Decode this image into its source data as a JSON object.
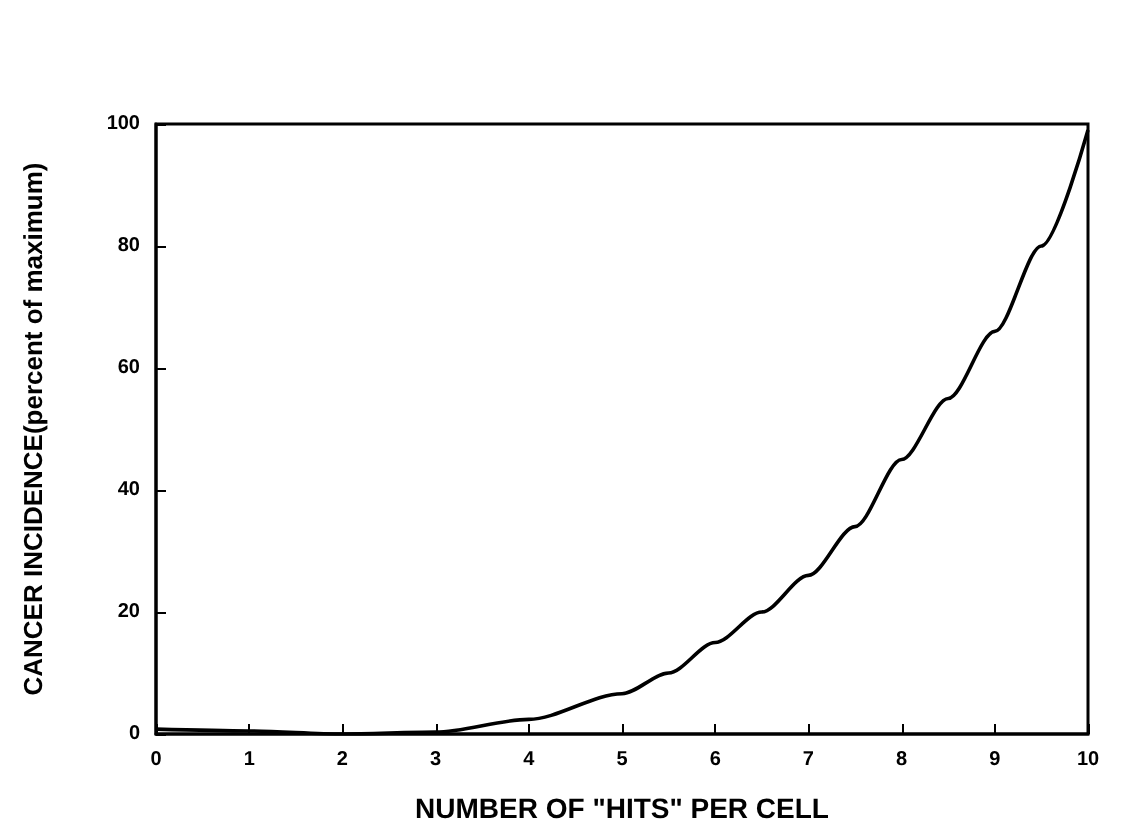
{
  "chart_data": {
    "type": "line",
    "xlabel": "NUMBER OF \"HITS\" PER CELL",
    "ylabel": "CANCER INCIDENCE(percent of maximum)",
    "x": [
      0,
      1,
      2,
      3,
      4,
      5,
      5.5,
      6,
      6.5,
      7,
      7.5,
      8,
      8.5,
      9,
      9.5,
      10
    ],
    "series": [
      {
        "color": "#000000",
        "values": [
          0.8,
          0.5,
          0,
          0.3,
          2.4,
          6.6,
          10,
          15,
          20,
          26,
          34,
          45,
          55,
          66,
          80,
          99
        ]
      }
    ],
    "xlim": [
      0,
      10
    ],
    "xticks": [
      0,
      1,
      2,
      3,
      4,
      5,
      6,
      7,
      8,
      9,
      10
    ],
    "ylim": [
      0,
      100
    ],
    "yticks": [
      0,
      20,
      40,
      60,
      80,
      100
    ],
    "grid": false,
    "marker": "none",
    "line_style": "solid"
  }
}
